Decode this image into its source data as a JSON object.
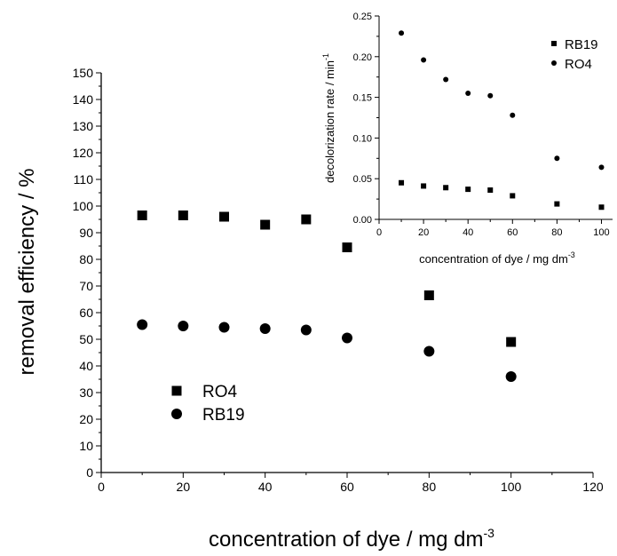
{
  "chart_data": [
    {
      "type": "scatter",
      "title": "",
      "xlabel": "concentration of dye / mg dm",
      "xlabel_superscript": "-3",
      "ylabel": "removal efficiency / %",
      "xlim": [
        0,
        120
      ],
      "ylim": [
        0,
        150
      ],
      "x_ticks": [
        "0",
        "20",
        "40",
        "60",
        "80",
        "100",
        "120"
      ],
      "y_ticks": [
        "0",
        "10",
        "20",
        "30",
        "40",
        "50",
        "60",
        "70",
        "80",
        "90",
        "100",
        "110",
        "120",
        "130",
        "140",
        "150"
      ],
      "grid": false,
      "legend_position": "lower-left",
      "series": [
        {
          "name": "RO4",
          "marker": "square",
          "x": [
            10,
            20,
            30,
            40,
            50,
            60,
            80,
            100
          ],
          "y": [
            96.5,
            96.5,
            96,
            93,
            95,
            84.5,
            66.5,
            49
          ]
        },
        {
          "name": "RB19",
          "marker": "circle",
          "x": [
            10,
            20,
            30,
            40,
            50,
            60,
            80,
            100
          ],
          "y": [
            55.5,
            55,
            54.5,
            54,
            53.5,
            50.5,
            45.5,
            36
          ]
        }
      ]
    },
    {
      "type": "scatter",
      "title": "",
      "xlabel": "concentration of dye / mg dm",
      "xlabel_superscript": "-3",
      "ylabel": "decolorization rate / min",
      "ylabel_superscript": "-1",
      "xlim": [
        0,
        105
      ],
      "ylim": [
        0,
        0.25
      ],
      "x_ticks": [
        "0",
        "20",
        "40",
        "60",
        "80",
        "100"
      ],
      "y_ticks": [
        "0.00",
        "0.05",
        "0.10",
        "0.15",
        "0.20",
        "0.25"
      ],
      "grid": false,
      "legend_position": "top-right",
      "series": [
        {
          "name": "RB19",
          "marker": "square",
          "x": [
            10,
            20,
            30,
            40,
            50,
            60,
            80,
            100
          ],
          "y": [
            0.045,
            0.041,
            0.039,
            0.037,
            0.036,
            0.029,
            0.019,
            0.015
          ]
        },
        {
          "name": "RO4",
          "marker": "circle",
          "x": [
            10,
            20,
            30,
            40,
            50,
            60,
            80,
            100
          ],
          "y": [
            0.229,
            0.196,
            0.172,
            0.155,
            0.152,
            0.128,
            0.075,
            0.064
          ]
        }
      ]
    }
  ]
}
